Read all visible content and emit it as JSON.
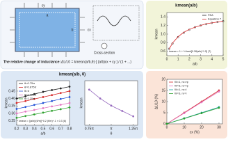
{
  "diagram": {
    "labels": [
      "a",
      "b",
      "εx",
      "εy"
    ],
    "cross_section": "Cross-section",
    "inductance_text": "The relative change of inductance:",
    "formula": "ΔL/L0 = kmean(a/b,θ)·[ (a/b)εx + εy ] / (1 + ...)"
  },
  "chart_data": [
    {
      "type": "line",
      "title": "kmean(a/b)",
      "x_label": "a/b",
      "y_label": "kmean",
      "x": [
        0.2,
        0.5,
        1,
        1.5,
        2,
        2.5,
        3,
        3.5,
        4,
        4.5,
        5
      ],
      "xlim": [
        0,
        5
      ],
      "xticks": [
        0,
        1,
        2,
        3,
        4,
        5
      ],
      "ylim": [
        0.5,
        1.5
      ],
      "yticks": [
        0.6,
        0.8,
        {
          "value": 1,
          "label": "1.0"
        },
        1.2,
        1.4
      ],
      "legend": "top-right",
      "annotation": "kmean = 1 + ½ tanh[0.28(a/b)^1.5]  (7)",
      "series": [
        {
          "name": "FEA",
          "color": "#222222",
          "mode": "markers",
          "values": [
            0.66,
            0.78,
            0.93,
            1.03,
            1.1,
            1.16,
            1.2,
            1.23,
            1.26,
            1.28,
            1.3
          ]
        },
        {
          "name": "Equation 7",
          "color": "#d62728",
          "mode": "line",
          "values": [
            0.65,
            0.79,
            0.94,
            1.04,
            1.11,
            1.16,
            1.2,
            1.24,
            1.26,
            1.28,
            1.3
          ]
        }
      ]
    },
    {
      "type": "line",
      "title": "kmean(a/b, θ)",
      "x_label": "a/b",
      "y_label": "kmean",
      "x": [
        0.2,
        0.3,
        0.4,
        0.5,
        0.6,
        0.7,
        0.8
      ],
      "xlim": [
        0.2,
        0.8
      ],
      "xticks": [
        0.2,
        0.3,
        0.4,
        0.5,
        0.6,
        0.7,
        0.8
      ],
      "ylim": [
        0.22,
        0.52
      ],
      "yticks": [
        0.25,
        {
          "value": 0.3,
          "label": "0.30"
        },
        0.35,
        {
          "value": 0.4,
          "label": "0.40"
        },
        0.45
      ],
      "legend": "top-left",
      "annotation": "kmean = [(a/b)/(θ/π)]^0.2 (θ/π)^-1 × 0.3  (6)",
      "series": [
        {
          "name": "θ=0.75π",
          "color": "#222222",
          "mode": "lines+markers",
          "values": [
            0.4,
            0.415,
            0.43,
            0.445,
            0.457,
            0.468,
            0.48
          ]
        },
        {
          "name": "θ=0.875π",
          "color": "#d62728",
          "mode": "lines+markers",
          "values": [
            0.37,
            0.383,
            0.397,
            0.41,
            0.423,
            0.437,
            0.45
          ]
        },
        {
          "name": "θ=π",
          "color": "#1f4fd6",
          "mode": "lines+markers",
          "values": [
            0.33,
            0.343,
            0.357,
            0.37,
            0.383,
            0.397,
            0.41
          ]
        },
        {
          "name": "θ=1.125π",
          "color": "#e377c2",
          "mode": "lines+markers",
          "values": [
            0.3,
            0.312,
            0.323,
            0.335,
            0.347,
            0.358,
            0.37
          ]
        },
        {
          "name": "θ=1.25π",
          "color": "#2ca02c",
          "mode": "lines+markers",
          "values": [
            0.27,
            0.282,
            0.293,
            0.305,
            0.317,
            0.328,
            0.34
          ]
        }
      ]
    },
    {
      "type": "line",
      "x_label": "θ",
      "y_label": "kmean",
      "x": [
        0.75,
        0.875,
        1,
        1.125,
        1.25
      ],
      "xlim": [
        0.7,
        1.3
      ],
      "xticks": [
        {
          "value": 0.75,
          "label": "0.75π"
        },
        {
          "value": 1,
          "label": "π"
        },
        {
          "value": 1.25,
          "label": "1.25π"
        }
      ],
      "ylim": [
        0.25,
        0.5
      ],
      "yticks": [],
      "series": [
        {
          "name": "kmean",
          "color": "#9467bd",
          "mode": "lines+markers",
          "values": [
            0.45,
            0.4,
            0.36,
            0.33,
            0.3
          ]
        }
      ]
    },
    {
      "type": "line",
      "x_label": "εx (%)",
      "y_label": "ΔL/L0 (%)",
      "x": [
        0,
        10,
        20,
        30
      ],
      "xlim": [
        0,
        32
      ],
      "xticks": [
        0,
        10,
        20,
        30
      ],
      "ylim": [
        0,
        20
      ],
      "yticks": [
        0,
        5,
        10,
        15,
        20
      ],
      "legend": "top-left",
      "series": [
        {
          "name": "W=1, ro=rp",
          "color": "#d62728",
          "mode": "lines+markers",
          "values": [
            0,
            5,
            10,
            15
          ]
        },
        {
          "name": "W=3, ro=rp",
          "color": "#e377c2",
          "mode": "lines+markers",
          "values": [
            0,
            4.8,
            9.7,
            14.5
          ]
        },
        {
          "name": "W=1, ro=l",
          "color": "#17a2a2",
          "mode": "lines+markers",
          "values": [
            0,
            2.5,
            5,
            7.5
          ]
        },
        {
          "name": "W=3, ro=l",
          "color": "#2ca02c",
          "mode": "lines+markers",
          "values": [
            0,
            2.4,
            4.8,
            7.2
          ]
        }
      ]
    }
  ]
}
